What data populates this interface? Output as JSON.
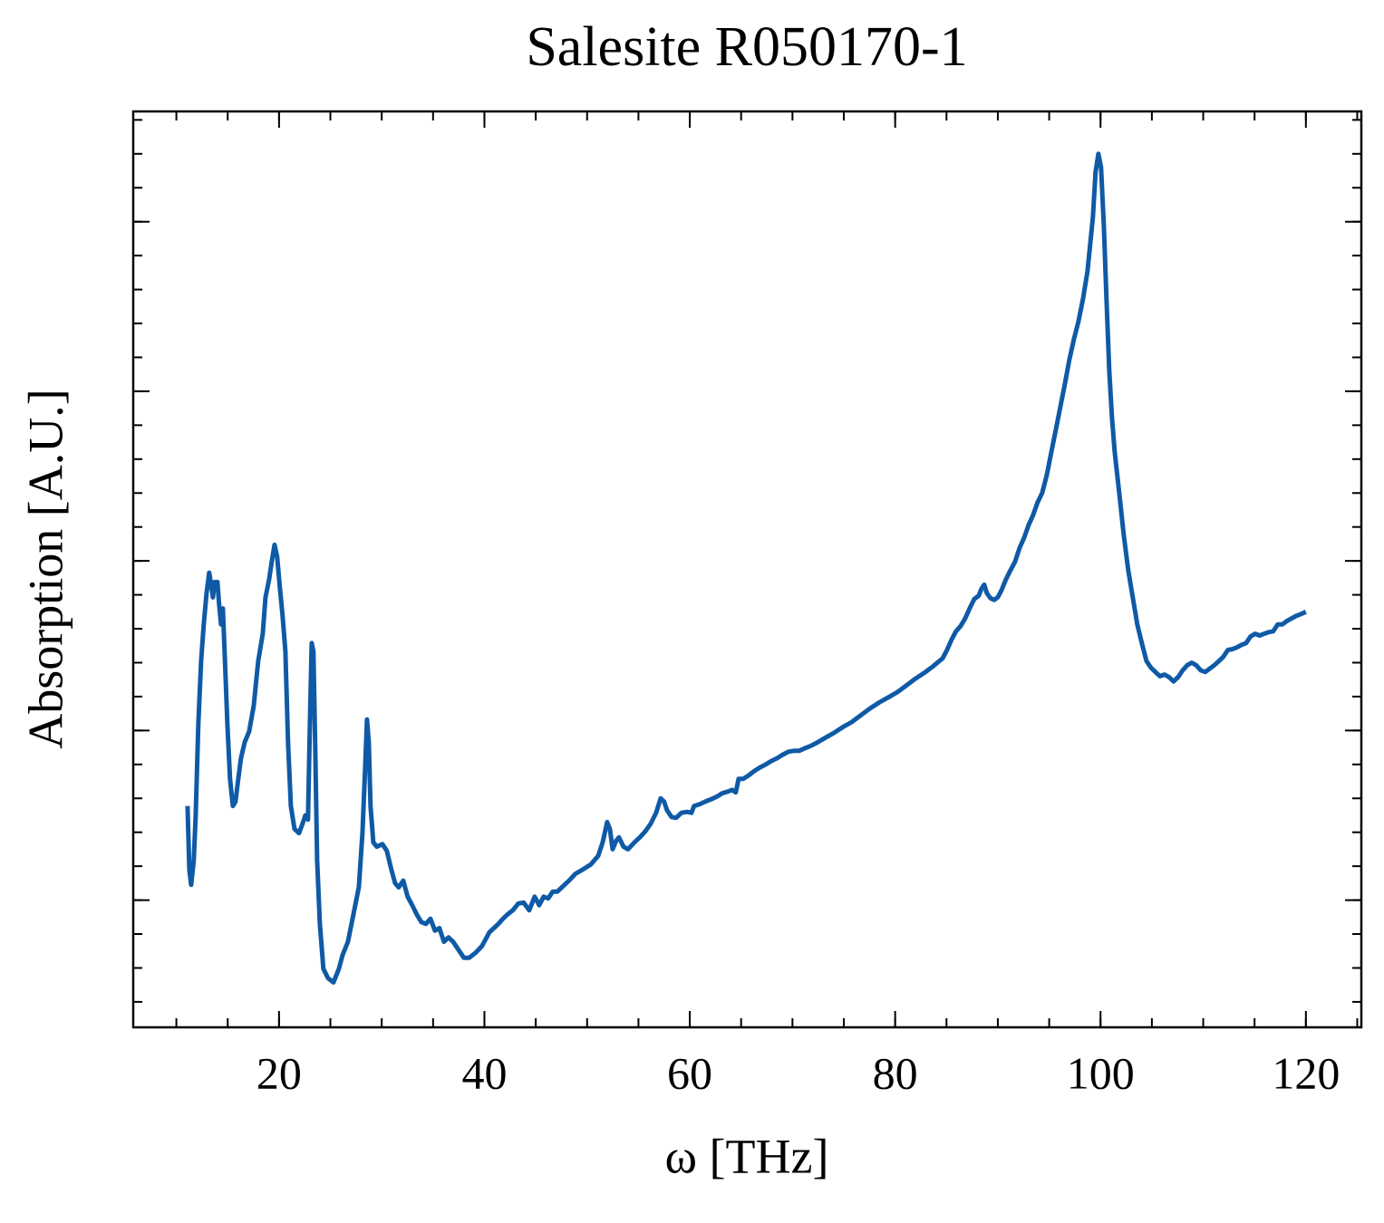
{
  "chart_data": {
    "type": "line",
    "title": "Salesite R050170-1",
    "xlabel": "ω [THz]",
    "ylabel": "Absorption [A.U.]",
    "color": "#0f5aa6",
    "xlim": [
      5.8,
      125.4
    ],
    "ylim": [
      0.05,
      1.13
    ],
    "xticks": [
      20,
      40,
      60,
      80,
      100,
      120
    ],
    "yticks": [
      0.2,
      0.4,
      0.6,
      0.8,
      1.0
    ],
    "xminor_step": 5,
    "yminor_step": 0.04,
    "show_ytick_labels": false,
    "x": [
      11.09,
      11.26,
      11.44,
      11.7,
      11.88,
      12.14,
      12.41,
      12.67,
      12.94,
      13.2,
      13.38,
      13.56,
      13.73,
      14.0,
      14.17,
      14.35,
      14.53,
      14.7,
      14.97,
      15.23,
      15.5,
      15.76,
      16.03,
      16.29,
      16.65,
      17.09,
      17.53,
      17.97,
      18.41,
      18.68,
      19.03,
      19.29,
      19.56,
      19.82,
      20.09,
      20.35,
      20.62,
      20.88,
      21.15,
      21.5,
      21.94,
      22.29,
      22.56,
      22.82,
      23.0,
      23.18,
      23.35,
      23.53,
      23.71,
      23.97,
      24.32,
      24.77,
      25.3,
      25.83,
      26.18,
      26.71,
      27.24,
      27.77,
      28.12,
      28.38,
      28.56,
      28.74,
      28.91,
      29.18,
      29.53,
      30.06,
      30.5,
      30.94,
      31.3,
      31.65,
      32.09,
      32.53,
      32.97,
      33.42,
      33.86,
      34.3,
      34.74,
      35.18,
      35.62,
      36.06,
      36.5,
      36.95,
      37.56,
      38.0,
      38.53,
      39.15,
      39.77,
      40.48,
      40.92,
      41.36,
      41.8,
      42.24,
      42.77,
      43.3,
      43.83,
      44.36,
      44.89,
      45.33,
      45.77,
      46.21,
      46.65,
      47.1,
      47.71,
      48.24,
      48.86,
      49.57,
      50.36,
      51.07,
      51.51,
      51.95,
      52.22,
      52.48,
      52.83,
      53.1,
      53.54,
      53.98,
      54.6,
      55.13,
      55.66,
      56.19,
      56.72,
      57.16,
      57.51,
      57.78,
      58.22,
      58.66,
      59.19,
      59.72,
      60.16,
      60.42,
      60.95,
      61.48,
      62.1,
      62.63,
      63.16,
      63.69,
      64.13,
      64.48,
      64.75,
      65.19,
      65.72,
      66.25,
      66.78,
      67.4,
      67.93,
      68.45,
      68.98,
      69.6,
      70.13,
      70.66,
      71.19,
      71.81,
      72.43,
      73.13,
      74.01,
      74.9,
      75.78,
      76.66,
      77.55,
      78.43,
      79.31,
      80.19,
      81.08,
      81.96,
      82.84,
      83.72,
      84.61,
      85.05,
      85.49,
      85.93,
      86.37,
      86.81,
      87.25,
      87.7,
      88.14,
      88.4,
      88.67,
      88.93,
      89.28,
      89.64,
      89.99,
      90.34,
      90.78,
      91.23,
      91.67,
      92.11,
      92.55,
      92.99,
      93.43,
      93.87,
      94.31,
      94.76,
      95.2,
      95.64,
      96.08,
      96.52,
      96.96,
      97.4,
      97.84,
      98.29,
      98.73,
      98.99,
      99.26,
      99.52,
      99.79,
      100.05,
      100.32,
      100.58,
      100.85,
      101.11,
      101.38,
      101.82,
      102.26,
      102.7,
      103.14,
      103.58,
      104.02,
      104.47,
      104.91,
      105.35,
      105.79,
      106.23,
      106.67,
      107.11,
      107.56,
      108.0,
      108.44,
      108.88,
      109.32,
      109.76,
      110.2,
      110.64,
      111.08,
      111.53,
      111.97,
      112.41,
      112.85,
      113.29,
      113.73,
      114.17,
      114.61,
      115.06,
      115.5,
      115.94,
      116.38,
      116.82,
      117.26,
      117.7,
      118.14,
      118.58,
      119.03,
      119.47,
      120.0
    ],
    "values": [
      0.311,
      0.236,
      0.218,
      0.247,
      0.3,
      0.407,
      0.482,
      0.525,
      0.562,
      0.586,
      0.573,
      0.557,
      0.575,
      0.575,
      0.548,
      0.525,
      0.544,
      0.493,
      0.407,
      0.343,
      0.311,
      0.316,
      0.343,
      0.367,
      0.386,
      0.399,
      0.429,
      0.482,
      0.514,
      0.557,
      0.578,
      0.599,
      0.619,
      0.605,
      0.567,
      0.535,
      0.493,
      0.386,
      0.311,
      0.284,
      0.279,
      0.29,
      0.3,
      0.295,
      0.407,
      0.503,
      0.493,
      0.375,
      0.247,
      0.172,
      0.119,
      0.108,
      0.103,
      0.119,
      0.135,
      0.151,
      0.183,
      0.215,
      0.279,
      0.354,
      0.413,
      0.386,
      0.311,
      0.268,
      0.263,
      0.266,
      0.258,
      0.236,
      0.22,
      0.215,
      0.223,
      0.204,
      0.194,
      0.183,
      0.174,
      0.172,
      0.178,
      0.164,
      0.167,
      0.151,
      0.156,
      0.151,
      0.14,
      0.132,
      0.132,
      0.138,
      0.146,
      0.162,
      0.167,
      0.172,
      0.178,
      0.183,
      0.188,
      0.196,
      0.197,
      0.188,
      0.204,
      0.194,
      0.204,
      0.202,
      0.21,
      0.21,
      0.217,
      0.223,
      0.231,
      0.236,
      0.242,
      0.252,
      0.268,
      0.292,
      0.284,
      0.26,
      0.27,
      0.274,
      0.263,
      0.26,
      0.268,
      0.274,
      0.281,
      0.29,
      0.303,
      0.32,
      0.316,
      0.306,
      0.298,
      0.297,
      0.303,
      0.304,
      0.303,
      0.311,
      0.313,
      0.316,
      0.319,
      0.322,
      0.326,
      0.328,
      0.33,
      0.327,
      0.343,
      0.343,
      0.347,
      0.352,
      0.356,
      0.36,
      0.364,
      0.367,
      0.371,
      0.375,
      0.376,
      0.376,
      0.379,
      0.382,
      0.386,
      0.391,
      0.397,
      0.404,
      0.41,
      0.418,
      0.426,
      0.433,
      0.439,
      0.445,
      0.453,
      0.461,
      0.468,
      0.476,
      0.485,
      0.495,
      0.507,
      0.517,
      0.523,
      0.532,
      0.544,
      0.555,
      0.559,
      0.567,
      0.572,
      0.562,
      0.556,
      0.554,
      0.557,
      0.565,
      0.578,
      0.589,
      0.599,
      0.615,
      0.627,
      0.642,
      0.654,
      0.669,
      0.68,
      0.701,
      0.728,
      0.754,
      0.781,
      0.808,
      0.837,
      0.861,
      0.882,
      0.909,
      0.941,
      0.973,
      1.005,
      1.059,
      1.08,
      1.064,
      0.995,
      0.909,
      0.824,
      0.77,
      0.728,
      0.68,
      0.631,
      0.589,
      0.557,
      0.525,
      0.503,
      0.482,
      0.474,
      0.469,
      0.464,
      0.466,
      0.463,
      0.458,
      0.463,
      0.471,
      0.477,
      0.48,
      0.477,
      0.471,
      0.469,
      0.473,
      0.477,
      0.482,
      0.487,
      0.495,
      0.496,
      0.498,
      0.501,
      0.503,
      0.511,
      0.514,
      0.512,
      0.514,
      0.516,
      0.517,
      0.525,
      0.525,
      0.529,
      0.532,
      0.535,
      0.537,
      0.54
    ]
  }
}
